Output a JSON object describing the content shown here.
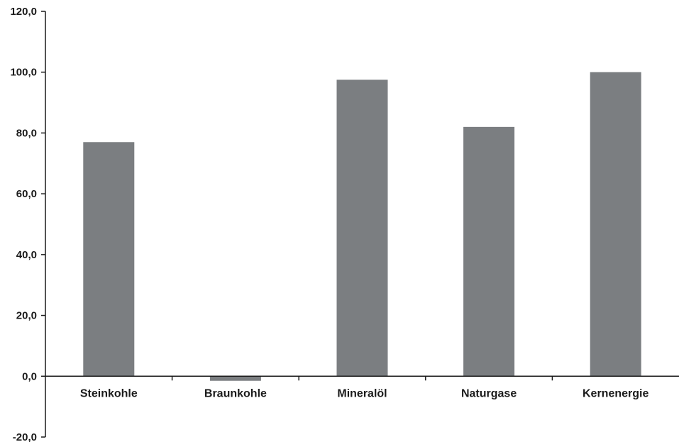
{
  "chart_data": {
    "type": "bar",
    "title": "",
    "xlabel": "",
    "ylabel": "",
    "categories": [
      "Steinkohle",
      "Braunkohle",
      "Mineralöl",
      "Naturgase",
      "Kernenergie"
    ],
    "values": [
      77.0,
      -1.5,
      97.5,
      82.0,
      100.0
    ],
    "ylim": [
      -20,
      120
    ],
    "yticks": [
      "-20,0",
      "0,0",
      "20,0",
      "40,0",
      "60,0",
      "80,0",
      "100,0",
      "120,0"
    ],
    "ytick_values": [
      -20,
      0,
      20,
      40,
      60,
      80,
      100,
      120
    ],
    "bar_color": "#7b7e81",
    "axis_color": "#1a1a1a",
    "grid": false,
    "legend": "none"
  }
}
